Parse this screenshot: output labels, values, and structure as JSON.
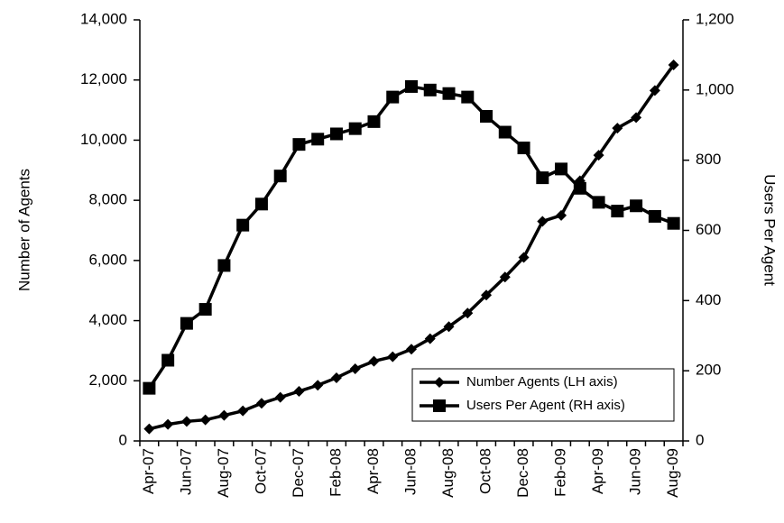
{
  "chart_data": {
    "type": "line",
    "categories": [
      "Apr-07",
      null,
      "Jun-07",
      null,
      "Aug-07",
      null,
      "Oct-07",
      null,
      "Dec-07",
      null,
      "Feb-08",
      null,
      "Apr-08",
      null,
      "Jun-08",
      null,
      "Aug-08",
      null,
      "Oct-08",
      null,
      "Dec-08",
      null,
      "Feb-09",
      null,
      "Apr-09",
      null,
      "Jun-09",
      null,
      "Aug-09"
    ],
    "series": [
      {
        "name": "Number Agents (LH axis)",
        "color": "#000000",
        "marker": "diamond",
        "values": [
          400,
          550,
          650,
          700,
          850,
          1000,
          1250,
          1450,
          1650,
          1850,
          2100,
          2400,
          2650,
          2800,
          3050,
          3400,
          3800,
          4250,
          4850,
          5450,
          6100,
          7300,
          7500,
          8650,
          9500,
          10400,
          10750,
          11650,
          12500
        ]
      },
      {
        "name": "Users Per Agent (RH axis)",
        "color": "#000000",
        "marker": "square",
        "axis": "y2",
        "values": [
          150,
          230,
          335,
          375,
          500,
          615,
          675,
          755,
          845,
          860,
          875,
          890,
          910,
          980,
          1010,
          1000,
          990,
          980,
          925,
          880,
          835,
          750,
          775,
          720,
          680,
          655,
          670,
          640,
          620
        ]
      }
    ],
    "ylabel": "Number of Agents",
    "y2label": "Users Per Agent",
    "ylim": [
      0,
      14000
    ],
    "yticks": [
      0,
      {
        "value": 2000,
        "label": "2,000"
      },
      {
        "value": 4000,
        "label": "4,000"
      },
      {
        "value": 6000,
        "label": "6,000"
      },
      {
        "value": 8000,
        "label": "8,000"
      },
      {
        "value": 10000,
        "label": "10,000"
      },
      {
        "value": 12000,
        "label": "12,000"
      },
      {
        "value": 14000,
        "label": "14,000"
      }
    ],
    "y2lim": [
      0,
      1200
    ],
    "y2ticks": [
      0,
      200,
      400,
      600,
      800,
      {
        "value": 1000,
        "label": "1,000"
      },
      {
        "value": 1200,
        "label": "1,200"
      }
    ],
    "legend": "lower right",
    "grid": false
  }
}
